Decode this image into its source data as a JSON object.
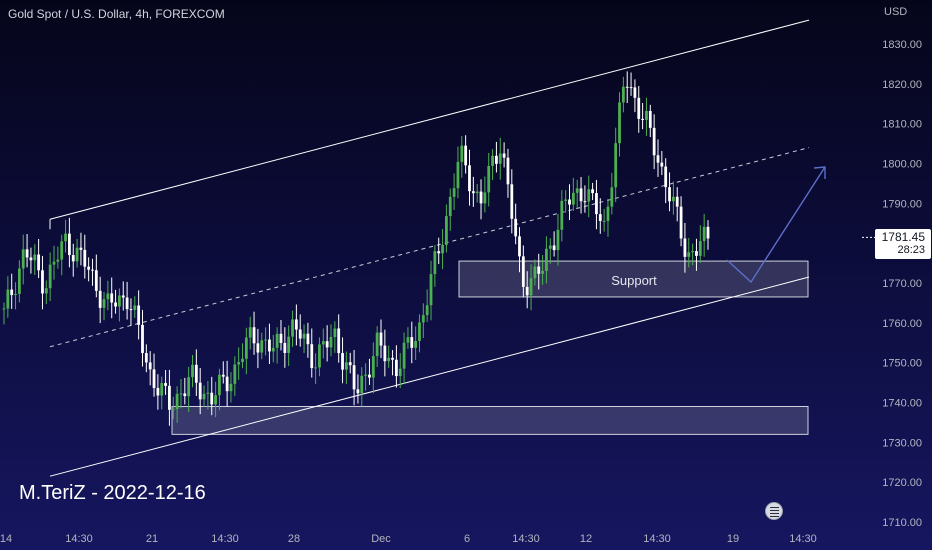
{
  "title": "Gold Spot / U.S. Dollar, 4h, FOREXCOM",
  "author_tag": "M.TeriZ - 2022-12-16",
  "currency": "USD",
  "last_price": "1781.45",
  "countdown": "28:23",
  "zone_label": "Support",
  "colors": {
    "up": "#26a69a",
    "up_fill": "#4caf50",
    "down": "#ffffff",
    "trendline": "#ffffff",
    "zone_fill": "#ffffff26",
    "projection": "#5b6fc9",
    "text": "#b2b5be"
  },
  "chart_data": {
    "type": "candlestick",
    "title": "Gold Spot / U.S. Dollar, 4h, FOREXCOM",
    "ylabel": "USD",
    "ylim": [
      1710,
      1835
    ],
    "y_ticks": [
      "1830.00",
      "1820.00",
      "1810.00",
      "1800.00",
      "1790.00",
      "1780.00",
      "1770.00",
      "1760.00",
      "1750.00",
      "1740.00",
      "1730.00",
      "1720.00",
      "1710.00"
    ],
    "x_ticks": [
      "14",
      "14:30",
      "21",
      "14:30",
      "28",
      "Dec",
      "6",
      "14:30",
      "12",
      "14:30",
      "19",
      "14:30"
    ],
    "candle_count": 120,
    "series": [
      {
        "name": "",
        "close_path": [
          [
            0,
            1775
          ],
          [
            4,
            1762
          ],
          [
            9,
            1780
          ],
          [
            14,
            1783
          ],
          [
            18,
            1772
          ],
          [
            24,
            1764
          ],
          [
            28,
            1760
          ],
          [
            33,
            1745
          ],
          [
            37,
            1738
          ],
          [
            41,
            1745
          ],
          [
            45,
            1740
          ],
          [
            48,
            1738
          ],
          [
            52,
            1747
          ],
          [
            57,
            1754
          ],
          [
            61,
            1759
          ],
          [
            66,
            1751
          ],
          [
            70,
            1757
          ],
          [
            74,
            1750
          ],
          [
            78,
            1741
          ],
          [
            82,
            1754
          ],
          [
            86,
            1747
          ],
          [
            90,
            1758
          ],
          [
            94,
            1778
          ],
          [
            98,
            1802
          ],
          [
            102,
            1797
          ],
          [
            106,
            1788
          ],
          [
            110,
            1800
          ],
          [
            114,
            1808
          ],
          [
            117,
            1790
          ],
          [
            120,
            1800
          ],
          [
            124,
            1790
          ],
          [
            128,
            1773
          ],
          [
            132,
            1769
          ],
          [
            136,
            1773
          ],
          [
            140,
            1780
          ],
          [
            144,
            1789
          ],
          [
            148,
            1792
          ],
          [
            152,
            1796
          ],
          [
            156,
            1790
          ],
          [
            160,
            1784
          ],
          [
            163,
            1794
          ],
          [
            166,
            1822
          ],
          [
            170,
            1812
          ],
          [
            174,
            1810
          ],
          [
            178,
            1796
          ],
          [
            182,
            1780
          ],
          [
            186,
            1777
          ],
          [
            189,
            1781
          ]
        ],
        "candles": [
          {
            "o": 1773,
            "h": 1778,
            "l": 1755,
            "c": 1762
          },
          {
            "o": 1762,
            "h": 1782,
            "l": 1758,
            "c": 1778
          },
          {
            "o": 1778,
            "h": 1787,
            "l": 1765,
            "c": 1770
          },
          {
            "o": 1770,
            "h": 1784,
            "l": 1766,
            "c": 1781
          },
          {
            "o": 1781,
            "h": 1785,
            "l": 1768,
            "c": 1774
          },
          {
            "o": 1774,
            "h": 1776,
            "l": 1760,
            "c": 1764
          },
          {
            "o": 1764,
            "h": 1770,
            "l": 1759,
            "c": 1767
          },
          {
            "o": 1767,
            "h": 1768,
            "l": 1743,
            "c": 1748
          },
          {
            "o": 1748,
            "h": 1751,
            "l": 1736,
            "c": 1739
          },
          {
            "o": 1739,
            "h": 1748,
            "l": 1737,
            "c": 1746
          },
          {
            "o": 1746,
            "h": 1748,
            "l": 1737,
            "c": 1741
          },
          {
            "o": 1741,
            "h": 1749,
            "l": 1736,
            "c": 1747
          },
          {
            "o": 1747,
            "h": 1760,
            "l": 1744,
            "c": 1757
          },
          {
            "o": 1757,
            "h": 1762,
            "l": 1750,
            "c": 1753
          },
          {
            "o": 1753,
            "h": 1761,
            "l": 1750,
            "c": 1759
          },
          {
            "o": 1759,
            "h": 1760,
            "l": 1748,
            "c": 1751
          },
          {
            "o": 1751,
            "h": 1759,
            "l": 1748,
            "c": 1757
          },
          {
            "o": 1757,
            "h": 1760,
            "l": 1740,
            "c": 1742
          },
          {
            "o": 1742,
            "h": 1757,
            "l": 1740,
            "c": 1754
          },
          {
            "o": 1754,
            "h": 1760,
            "l": 1745,
            "c": 1749
          },
          {
            "o": 1749,
            "h": 1760,
            "l": 1747,
            "c": 1758
          },
          {
            "o": 1758,
            "h": 1780,
            "l": 1748,
            "c": 1778
          },
          {
            "o": 1778,
            "h": 1806,
            "l": 1776,
            "c": 1802
          },
          {
            "o": 1802,
            "h": 1805,
            "l": 1785,
            "c": 1790
          },
          {
            "o": 1790,
            "h": 1809,
            "l": 1786,
            "c": 1806
          },
          {
            "o": 1806,
            "h": 1809,
            "l": 1768,
            "c": 1770
          },
          {
            "o": 1770,
            "h": 1775,
            "l": 1767,
            "c": 1773
          },
          {
            "o": 1773,
            "h": 1792,
            "l": 1770,
            "c": 1789
          },
          {
            "o": 1789,
            "h": 1797,
            "l": 1784,
            "c": 1794
          },
          {
            "o": 1794,
            "h": 1806,
            "l": 1780,
            "c": 1784
          },
          {
            "o": 1784,
            "h": 1825,
            "l": 1782,
            "c": 1822
          },
          {
            "o": 1822,
            "h": 1824,
            "l": 1805,
            "c": 1810
          },
          {
            "o": 1810,
            "h": 1812,
            "l": 1792,
            "c": 1795
          },
          {
            "o": 1795,
            "h": 1796,
            "l": 1774,
            "c": 1777
          },
          {
            "o": 1777,
            "h": 1784,
            "l": 1775,
            "c": 1781
          }
        ]
      }
    ],
    "annotations": [
      {
        "type": "channel",
        "upper": [
          [
            0,
            1786
          ],
          [
            189,
            1846
          ]
        ],
        "lower": [
          [
            0,
            1722
          ],
          [
            189,
            1771
          ]
        ],
        "mid_dashed": [
          [
            0,
            1754
          ],
          [
            189,
            1808
          ]
        ]
      },
      {
        "type": "zone",
        "label": "Support",
        "from": 1766.5,
        "to": 1775.5,
        "x_start": 104
      },
      {
        "type": "zone",
        "label": "",
        "from": 1732,
        "to": 1739,
        "x_start": 38
      },
      {
        "type": "projection_arrow",
        "points": [
          [
            1781,
            1776
          ],
          [
            1772,
            1771
          ],
          [
            1800,
            1801
          ]
        ]
      }
    ]
  }
}
